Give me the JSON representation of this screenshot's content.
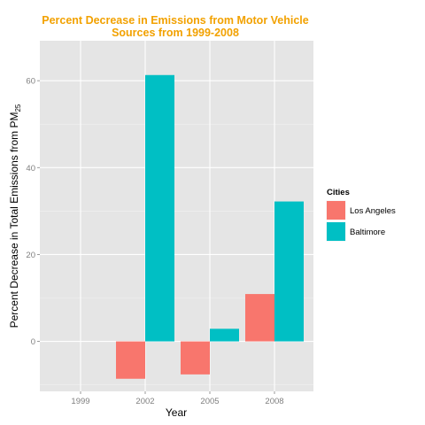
{
  "chart_data": {
    "type": "bar",
    "title_lines": [
      "Percent Decrease in Emissions from Motor Vehicle",
      "Sources from 1999-2008"
    ],
    "xlabel": "Year",
    "ylabel": {
      "main": "Percent Decrease in Total Emissions from PM",
      "subscript": "25"
    },
    "categories": [
      "1999",
      "2002",
      "2005",
      "2008"
    ],
    "series": [
      {
        "name": "Los Angeles",
        "color": "#F8766D",
        "values": [
          0,
          -8.6,
          -7.6,
          10.9
        ]
      },
      {
        "name": "Baltimore",
        "color": "#00BFC4",
        "values": [
          0,
          61.3,
          2.9,
          32.2
        ]
      }
    ],
    "y_ticks": [
      0,
      20,
      40,
      60
    ],
    "ylim": [
      -11.5,
      69.2
    ],
    "grid": true,
    "legend": {
      "title": "Cities",
      "position": "right"
    },
    "colors": {
      "title": "#F2A100",
      "panel": "#E5E5E5",
      "grid": "#FFFFFF"
    }
  }
}
